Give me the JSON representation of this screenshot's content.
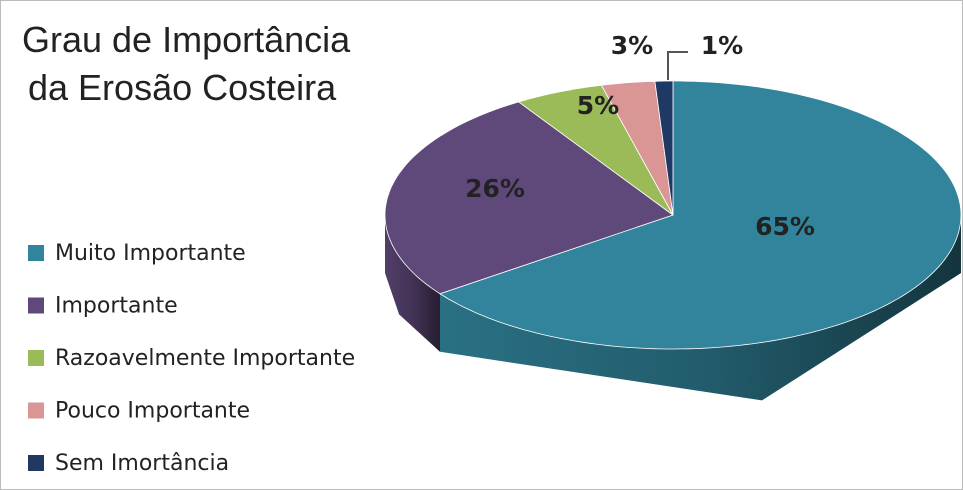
{
  "chart_data": {
    "type": "pie",
    "title": [
      "Grau de Importância",
      "da Erosão Costeira"
    ],
    "categories": [
      "Muito Importante",
      "Importante",
      "Razoavelmente Importante",
      "Pouco Importante",
      "Sem Imortância"
    ],
    "values": [
      65,
      26,
      5,
      3,
      1
    ],
    "value_labels": [
      "65%",
      "26%",
      "5%",
      "3%",
      "1%"
    ],
    "colors": [
      "#31849b",
      "#5f497a",
      "#9bbb59",
      "#d99694",
      "#1f3864"
    ],
    "legend": "left"
  }
}
